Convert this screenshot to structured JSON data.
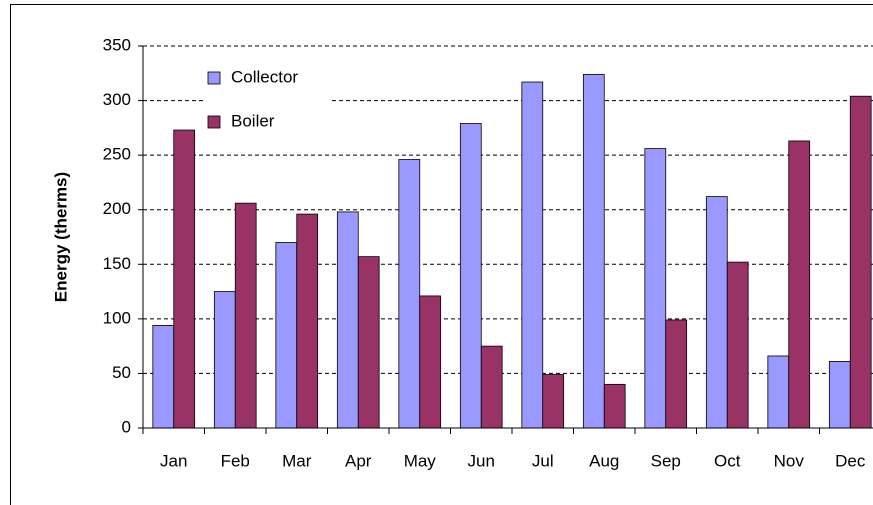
{
  "chart_data": {
    "type": "bar",
    "y_label": "Energy (therms)",
    "categories": [
      "Jan",
      "Feb",
      "Mar",
      "Apr",
      "May",
      "Jun",
      "Jul",
      "Aug",
      "Sep",
      "Oct",
      "Nov",
      "Dec"
    ],
    "series": [
      {
        "name": "Collector",
        "color": "#9999ff",
        "values": [
          94,
          125,
          170,
          198,
          246,
          279,
          317,
          324,
          256,
          212,
          66,
          61
        ]
      },
      {
        "name": "Boiler",
        "color": "#993366",
        "values": [
          273,
          206,
          196,
          157,
          121,
          75,
          49,
          40,
          99,
          152,
          263,
          304
        ]
      }
    ],
    "ylim": [
      0,
      350
    ],
    "yticks": [
      0,
      50,
      100,
      150,
      200,
      250,
      300,
      350
    ],
    "grid": true,
    "legend": "top-left"
  }
}
